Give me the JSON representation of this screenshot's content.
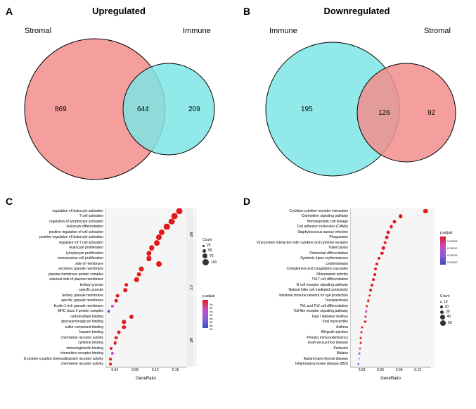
{
  "panelA": {
    "label": "A",
    "title": "Upregulated",
    "left_label": "Stromal",
    "right_label": "Immune",
    "left_count": 869,
    "overlap_count": 644,
    "right_count": 209,
    "left_color": "#f28e8c",
    "right_color": "#7ee5e5",
    "overlap_color": "#4d8b8b",
    "stroke": "#000000"
  },
  "panelB": {
    "label": "B",
    "title": "Downregulated",
    "left_label": "Immune",
    "right_label": "Stromal",
    "left_count": 195,
    "overlap_count": 126,
    "right_count": 92,
    "left_color": "#7ee5e5",
    "right_color": "#f28e8c",
    "overlap_color": "#9a5a5a",
    "stroke": "#000000"
  },
  "panelC": {
    "label": "C",
    "x_axis_label": "GeneRatio",
    "x_ticks": [
      "0.04",
      "0.08",
      "0.12",
      "0.16"
    ],
    "x_range": [
      0.02,
      0.18
    ],
    "groups": [
      "BP",
      "CC",
      "MF"
    ],
    "count_legend": {
      "title": "Count",
      "values": [
        25,
        50,
        75,
        100
      ],
      "sizes": [
        3,
        5,
        7,
        9
      ]
    },
    "padj_legend": {
      "title": "p.adjust",
      "values": [
        "2e-05",
        "4e-05",
        "6e-05",
        "8e-05"
      ],
      "colors": [
        "#e31a1c",
        "#c94bbe",
        "#8b5fd6",
        "#3b4cc0"
      ]
    },
    "rows": [
      {
        "group": "BP",
        "label": "regulation of leukocyte activation",
        "x": 0.165,
        "count": 100,
        "padj_color": "#e31a1c"
      },
      {
        "group": "BP",
        "label": "T cell activation",
        "x": 0.155,
        "count": 95,
        "padj_color": "#e31a1c"
      },
      {
        "group": "BP",
        "label": "regulation of lymphocyte activation",
        "x": 0.15,
        "count": 92,
        "padj_color": "#e31a1c"
      },
      {
        "group": "BP",
        "label": "leukocyte differentiation",
        "x": 0.14,
        "count": 88,
        "padj_color": "#e31a1c"
      },
      {
        "group": "BP",
        "label": "positive regulation of cell activation",
        "x": 0.13,
        "count": 80,
        "padj_color": "#e31a1c"
      },
      {
        "group": "BP",
        "label": "positive regulation of leukocyte activation",
        "x": 0.125,
        "count": 78,
        "padj_color": "#e31a1c"
      },
      {
        "group": "BP",
        "label": "regulation of T cell activation",
        "x": 0.12,
        "count": 75,
        "padj_color": "#e31a1c"
      },
      {
        "group": "BP",
        "label": "leukocyte proliferation",
        "x": 0.11,
        "count": 70,
        "padj_color": "#e31a1c"
      },
      {
        "group": "BP",
        "label": "lymphocyte proliferation",
        "x": 0.105,
        "count": 66,
        "padj_color": "#e31a1c"
      },
      {
        "group": "BP",
        "label": "mononuclear cell proliferation",
        "x": 0.105,
        "count": 66,
        "padj_color": "#e31a1c"
      },
      {
        "group": "CC",
        "label": "side of membrane",
        "x": 0.125,
        "count": 78,
        "padj_color": "#e31a1c"
      },
      {
        "group": "CC",
        "label": "secretory granule membrane",
        "x": 0.09,
        "count": 58,
        "padj_color": "#e31a1c"
      },
      {
        "group": "CC",
        "label": "plasma membrane protein complex",
        "x": 0.085,
        "count": 55,
        "padj_color": "#e31a1c"
      },
      {
        "group": "CC",
        "label": "external side of plasma membrane",
        "x": 0.08,
        "count": 52,
        "padj_color": "#e31a1c"
      },
      {
        "group": "CC",
        "label": "tertiary granule",
        "x": 0.06,
        "count": 40,
        "padj_color": "#e31a1c"
      },
      {
        "group": "CC",
        "label": "specific granule",
        "x": 0.058,
        "count": 38,
        "padj_color": "#e31a1c"
      },
      {
        "group": "CC",
        "label": "tertiary granule membrane",
        "x": 0.042,
        "count": 28,
        "padj_color": "#e31a1c"
      },
      {
        "group": "CC",
        "label": "specific granule membrane",
        "x": 0.04,
        "count": 26,
        "padj_color": "#e31a1c"
      },
      {
        "group": "CC",
        "label": "ficolin-1-rich granule membrane",
        "x": 0.032,
        "count": 22,
        "padj_color": "#c94bbe"
      },
      {
        "group": "CC",
        "label": "MHC class II protein complex",
        "x": 0.025,
        "count": 18,
        "padj_color": "#3b4cc0"
      },
      {
        "group": "MF",
        "label": "carbohydrate binding",
        "x": 0.07,
        "count": 46,
        "padj_color": "#e31a1c"
      },
      {
        "group": "MF",
        "label": "glycosaminoglycan binding",
        "x": 0.055,
        "count": 36,
        "padj_color": "#e31a1c"
      },
      {
        "group": "MF",
        "label": "sulfur compound binding",
        "x": 0.055,
        "count": 36,
        "padj_color": "#e31a1c"
      },
      {
        "group": "MF",
        "label": "heparin binding",
        "x": 0.045,
        "count": 30,
        "padj_color": "#e31a1c"
      },
      {
        "group": "MF",
        "label": "chemokine receptor activity",
        "x": 0.04,
        "count": 26,
        "padj_color": "#e31a1c"
      },
      {
        "group": "MF",
        "label": "cytokine binding",
        "x": 0.038,
        "count": 25,
        "padj_color": "#e31a1c"
      },
      {
        "group": "MF",
        "label": "immunoglobulin binding",
        "x": 0.03,
        "count": 20,
        "padj_color": "#e31a1c"
      },
      {
        "group": "MF",
        "label": "chemokine receptor binding",
        "x": 0.032,
        "count": 22,
        "padj_color": "#c94bbe"
      },
      {
        "group": "MF",
        "label": "G protein-coupled chemoattractant receptor activity",
        "x": 0.028,
        "count": 18,
        "padj_color": "#e31a1c"
      },
      {
        "group": "MF",
        "label": "chemokine receptor activity",
        "x": 0.028,
        "count": 18,
        "padj_color": "#e31a1c"
      }
    ]
  },
  "panelD": {
    "label": "D",
    "x_axis_label": "GeneRatio",
    "x_ticks": [
      "0.03",
      "0.06",
      "0.09",
      "0.12"
    ],
    "x_range": [
      0.01,
      0.14
    ],
    "count_legend": {
      "title": "Count",
      "values": [
        10,
        20,
        30,
        40,
        50
      ],
      "sizes": [
        2,
        3.5,
        5,
        6.5,
        8
      ]
    },
    "padj_legend": {
      "title": "p.adjust",
      "values": [
        "0.00005",
        "0.00010",
        "0.00015",
        "0.00020"
      ],
      "colors": [
        "#e31a1c",
        "#c94bbe",
        "#8b5fd6",
        "#3b4cc0"
      ]
    },
    "rows": [
      {
        "label": "Cytokine-cytokine receptor interaction",
        "x": 0.13,
        "count": 50,
        "padj_color": "#e31a1c"
      },
      {
        "label": "Chemokine signaling pathway",
        "x": 0.09,
        "count": 36,
        "padj_color": "#e31a1c"
      },
      {
        "label": "Hematopoietic cell lineage",
        "x": 0.08,
        "count": 32,
        "padj_color": "#e31a1c"
      },
      {
        "label": "Cell adhesion molecules (CAMs)",
        "x": 0.075,
        "count": 30,
        "padj_color": "#e31a1c"
      },
      {
        "label": "Staphylococcus aureus infection",
        "x": 0.07,
        "count": 28,
        "padj_color": "#e31a1c"
      },
      {
        "label": "Phagosome",
        "x": 0.068,
        "count": 27,
        "padj_color": "#e31a1c"
      },
      {
        "label": "Viral protein interaction with cytokine and cytokine receptor",
        "x": 0.065,
        "count": 26,
        "padj_color": "#e31a1c"
      },
      {
        "label": "Tuberculosis",
        "x": 0.062,
        "count": 25,
        "padj_color": "#e31a1c"
      },
      {
        "label": "Osteoclast differentiation",
        "x": 0.06,
        "count": 24,
        "padj_color": "#e31a1c"
      },
      {
        "label": "Systemic lupus erythematosus",
        "x": 0.055,
        "count": 22,
        "padj_color": "#e31a1c"
      },
      {
        "label": "Leishmaniasis",
        "x": 0.052,
        "count": 21,
        "padj_color": "#e31a1c"
      },
      {
        "label": "Complement and coagulation cascades",
        "x": 0.05,
        "count": 20,
        "padj_color": "#e31a1c"
      },
      {
        "label": "Rheumatoid arthritis",
        "x": 0.048,
        "count": 19,
        "padj_color": "#e31a1c"
      },
      {
        "label": "Th17 cell differentiation",
        "x": 0.046,
        "count": 18,
        "padj_color": "#e31a1c"
      },
      {
        "label": "B cell receptor signaling pathway",
        "x": 0.044,
        "count": 18,
        "padj_color": "#e31a1c"
      },
      {
        "label": "Natural killer cell mediated cytotoxicity",
        "x": 0.042,
        "count": 17,
        "padj_color": "#e31a1c"
      },
      {
        "label": "Intestinal immune network for IgA production",
        "x": 0.04,
        "count": 16,
        "padj_color": "#e31a1c"
      },
      {
        "label": "Toxoplasmosis",
        "x": 0.038,
        "count": 15,
        "padj_color": "#e31a1c"
      },
      {
        "label": "Th1 and Th2 cell differentiation",
        "x": 0.036,
        "count": 14,
        "padj_color": "#e31a1c"
      },
      {
        "label": "Toll-like receptor signaling pathway",
        "x": 0.035,
        "count": 14,
        "padj_color": "#c94bbe"
      },
      {
        "label": "Type I diabetes mellitus",
        "x": 0.034,
        "count": 13,
        "padj_color": "#e31a1c"
      },
      {
        "label": "Viral myocarditis",
        "x": 0.033,
        "count": 13,
        "padj_color": "#e31a1c"
      },
      {
        "label": "Asthma",
        "x": 0.028,
        "count": 11,
        "padj_color": "#e31a1c"
      },
      {
        "label": "Allograft rejection",
        "x": 0.027,
        "count": 11,
        "padj_color": "#e31a1c"
      },
      {
        "label": "Primary immunodeficiency",
        "x": 0.026,
        "count": 10,
        "padj_color": "#e31a1c"
      },
      {
        "label": "Graft-versus-host disease",
        "x": 0.026,
        "count": 10,
        "padj_color": "#e31a1c"
      },
      {
        "label": "Pertussis",
        "x": 0.025,
        "count": 10,
        "padj_color": "#c94bbe"
      },
      {
        "label": "Malaria",
        "x": 0.024,
        "count": 10,
        "padj_color": "#8b5fd6"
      },
      {
        "label": "Autoimmune thyroid disease",
        "x": 0.023,
        "count": 9,
        "padj_color": "#c94bbe"
      },
      {
        "label": "Inflammatory bowel disease (IBD)",
        "x": 0.022,
        "count": 9,
        "padj_color": "#3b4cc0"
      }
    ]
  }
}
